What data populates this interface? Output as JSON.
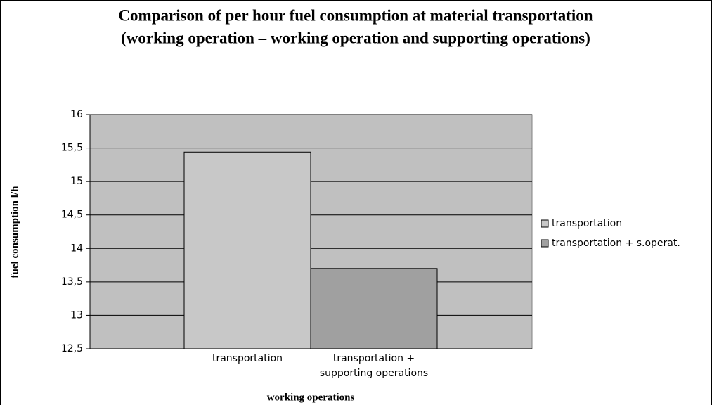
{
  "chart_data": {
    "type": "bar",
    "title": "Comparison of per hour fuel consumption at material transportation",
    "subtitle": "(working operation – working operation and supporting operations)",
    "x_label": "working operations",
    "y_label": "fuel consumption l/h",
    "categories": [
      "transportation",
      "transportation + supporting operations"
    ],
    "series": [
      {
        "name": "transportation",
        "color": "#c8c8c8",
        "values": [
          15.44,
          null
        ]
      },
      {
        "name": "transportation + s.operat.",
        "color": "#a0a0a0",
        "values": [
          null,
          13.7
        ]
      }
    ],
    "ylim": [
      12.5,
      16
    ],
    "yticks": [
      {
        "value": 12.5,
        "label": "12,5"
      },
      13,
      {
        "value": 13.5,
        "label": "13,5"
      },
      14,
      {
        "value": 14.5,
        "label": "14,5"
      },
      15,
      {
        "value": 15.5,
        "label": "15,5"
      },
      16
    ],
    "grid": true,
    "plot_background": "#c0c0c0",
    "legend": "right"
  }
}
